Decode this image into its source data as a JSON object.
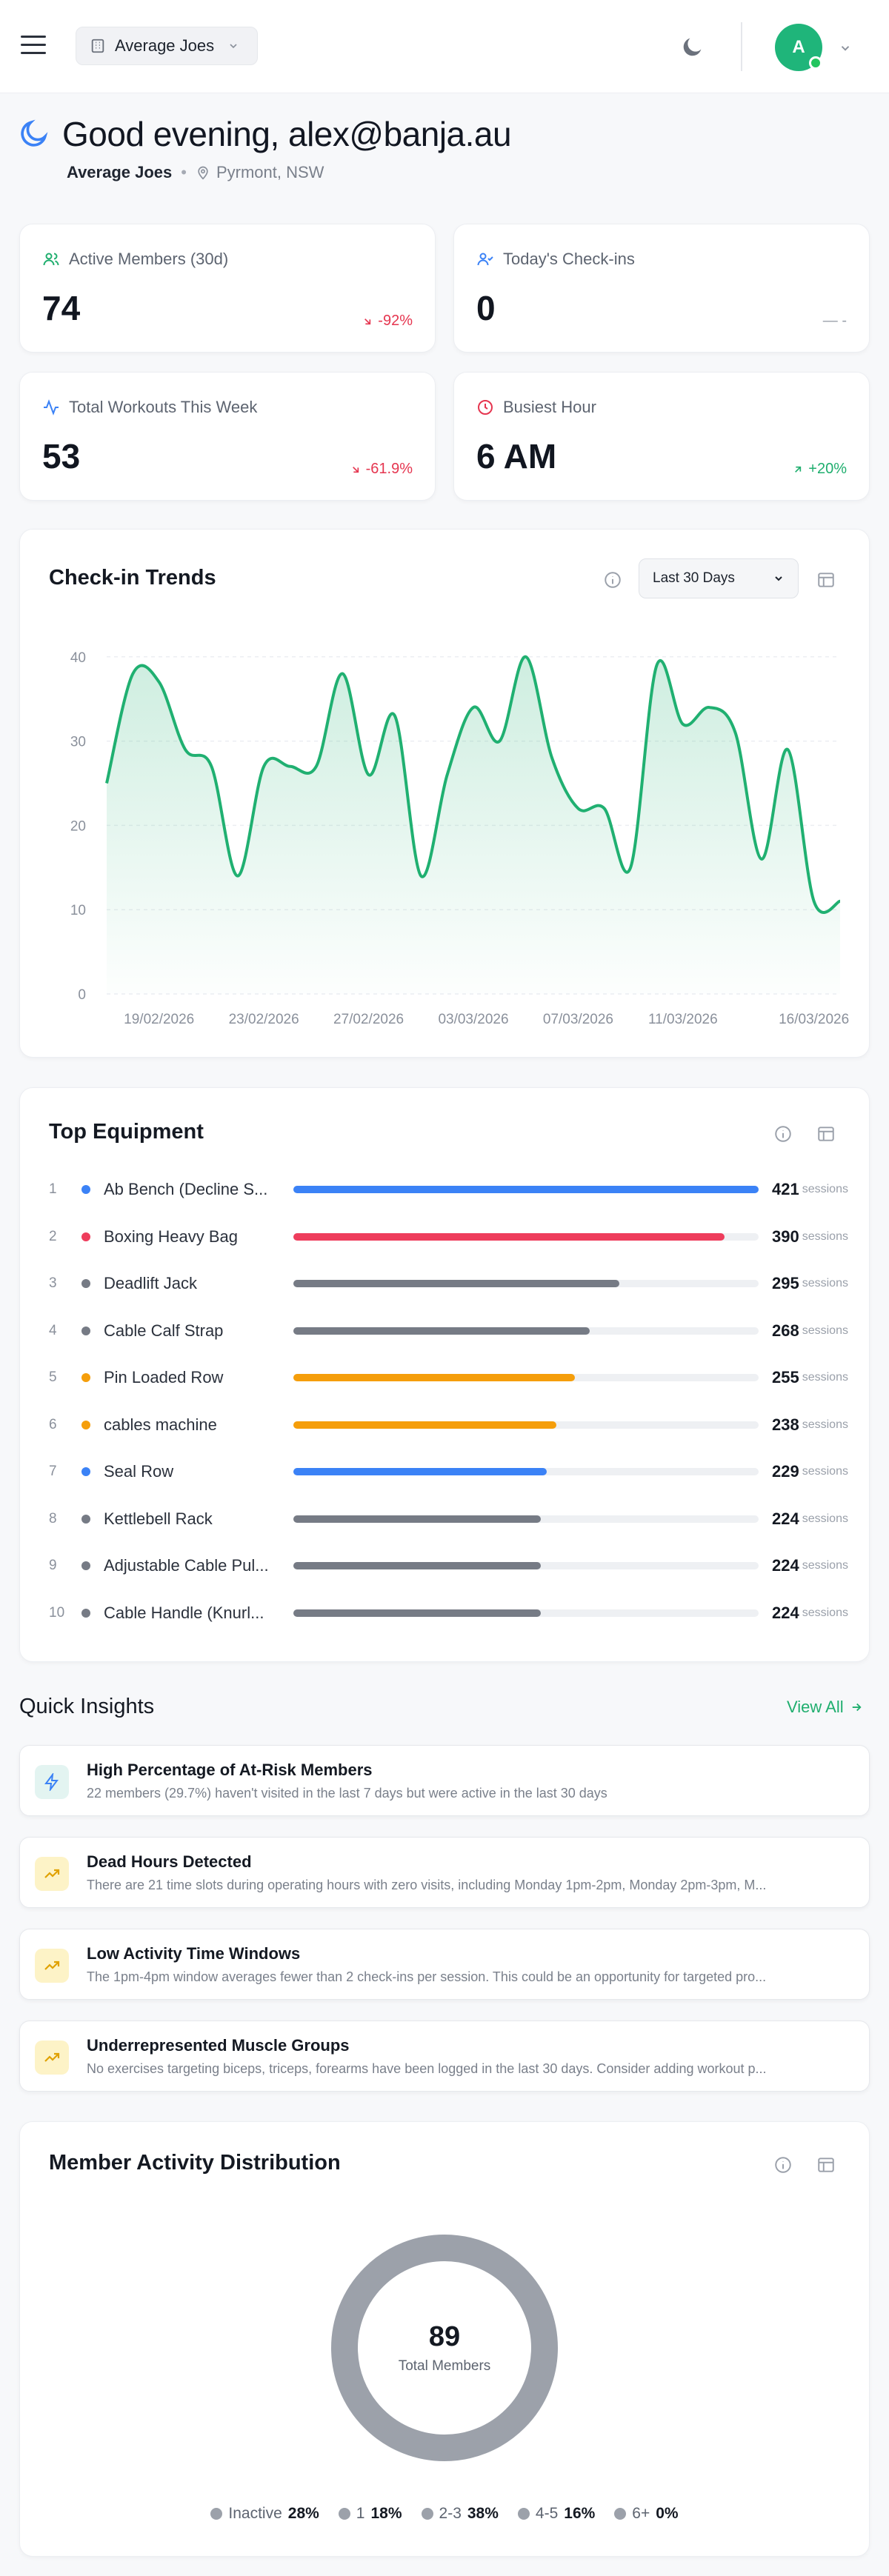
{
  "header": {
    "gym_selector": "Average Joes",
    "avatar_initial": "A"
  },
  "greeting": {
    "title": "Good evening, alex@banja.au",
    "gym_name": "Average Joes",
    "separator": "•",
    "location": "Pyrmont, NSW"
  },
  "stats": [
    {
      "label": "Active Members (30d)",
      "value": "74",
      "change": "-92%",
      "trend": "down",
      "icon": "users-icon",
      "icon_color": "#1fae6e"
    },
    {
      "label": "Today's Check-ins",
      "value": "0",
      "change": "— -",
      "trend": "neutral",
      "icon": "user-check-icon",
      "icon_color": "#3b82f6"
    },
    {
      "label": "Total Workouts This Week",
      "value": "53",
      "change": "-61.9%",
      "trend": "down",
      "icon": "activity-icon",
      "icon_color": "#3b82f6"
    },
    {
      "label": "Busiest Hour",
      "value": "6 AM",
      "change": "+20%",
      "trend": "up",
      "icon": "clock-icon",
      "icon_color": "#e5354f"
    }
  ],
  "checkin_trends": {
    "title": "Check-in Trends",
    "range_label": "Last 30 Days"
  },
  "chart_data": {
    "type": "area",
    "title": "Check-in Trends",
    "x": [
      "17/02/2026",
      "18/02/2026",
      "19/02/2026",
      "20/02/2026",
      "21/02/2026",
      "22/02/2026",
      "23/02/2026",
      "24/02/2026",
      "25/02/2026",
      "26/02/2026",
      "27/02/2026",
      "28/02/2026",
      "01/03/2026",
      "02/03/2026",
      "03/03/2026",
      "04/03/2026",
      "05/03/2026",
      "06/03/2026",
      "07/03/2026",
      "08/03/2026",
      "09/03/2026",
      "10/03/2026",
      "11/03/2026",
      "12/03/2026",
      "13/03/2026",
      "14/03/2026",
      "15/03/2026",
      "16/03/2026",
      "17/03/2026"
    ],
    "values": [
      25,
      38,
      37,
      29,
      27,
      14,
      27,
      27,
      27,
      38,
      26,
      33,
      14,
      26,
      34,
      30,
      40,
      28,
      22,
      22,
      15,
      39,
      32,
      34,
      31,
      16,
      29,
      11,
      11
    ],
    "xtick_labels": [
      "19/02/2026",
      "23/02/2026",
      "27/02/2026",
      "03/03/2026",
      "07/03/2026",
      "11/03/2026",
      "16/03/2026"
    ],
    "yticks": [
      0,
      10,
      20,
      30,
      40
    ],
    "ylim": [
      0,
      42
    ],
    "color": "#20b071",
    "grid": true
  },
  "top_equipment": {
    "title": "Top Equipment",
    "unit": "sessions",
    "max": 421,
    "items": [
      {
        "rank": "1",
        "name": "Ab Bench (Decline S...",
        "count": 421,
        "color": "#3b82f6"
      },
      {
        "rank": "2",
        "name": "Boxing Heavy Bag",
        "count": 390,
        "color": "#ee3d5c"
      },
      {
        "rank": "3",
        "name": "Deadlift Jack",
        "count": 295,
        "color": "#767b85"
      },
      {
        "rank": "4",
        "name": "Cable Calf Strap",
        "count": 268,
        "color": "#767b85"
      },
      {
        "rank": "5",
        "name": "Pin Loaded Row",
        "count": 255,
        "color": "#f59e0b"
      },
      {
        "rank": "6",
        "name": "cables machine",
        "count": 238,
        "color": "#f59e0b"
      },
      {
        "rank": "7",
        "name": "Seal Row",
        "count": 229,
        "color": "#3b82f6"
      },
      {
        "rank": "8",
        "name": "Kettlebell Rack",
        "count": 224,
        "color": "#767b85"
      },
      {
        "rank": "9",
        "name": "Adjustable Cable Pul...",
        "count": 224,
        "color": "#767b85"
      },
      {
        "rank": "10",
        "name": "Cable Handle (Knurl...",
        "count": 224,
        "color": "#767b85"
      }
    ]
  },
  "quick_insights": {
    "title": "Quick Insights",
    "view_all": "View All",
    "items": [
      {
        "title": "High Percentage of At-Risk Members",
        "desc": "22 members (29.7%) haven't visited in the last 7 days but were active in the last 30 days",
        "icon": "zap-icon",
        "bg": "#e3f4f1",
        "fg": "#3b82f6"
      },
      {
        "title": "Dead Hours Detected",
        "desc": "There are 21 time slots during operating hours with zero visits, including Monday 1pm-2pm, Monday 2pm-3pm, M...",
        "icon": "trending-up-icon",
        "bg": "#fdf3c7",
        "fg": "#e0a100"
      },
      {
        "title": "Low Activity Time Windows",
        "desc": "The 1pm-4pm window averages fewer than 2 check-ins per session. This could be an opportunity for targeted pro...",
        "icon": "trending-up-icon",
        "bg": "#fdf3c7",
        "fg": "#e0a100"
      },
      {
        "title": "Underrepresented Muscle Groups",
        "desc": "No exercises targeting biceps, triceps, forearms have been logged in the last 30 days. Consider adding workout p...",
        "icon": "trending-up-icon",
        "bg": "#fdf3c7",
        "fg": "#e0a100"
      }
    ]
  },
  "distribution": {
    "title": "Member Activity Distribution",
    "total": "89",
    "total_label": "Total Members",
    "ring_color": "#9ca1aa",
    "legend": [
      {
        "name": "Inactive",
        "value": "28%"
      },
      {
        "name": "1",
        "value": "18%"
      },
      {
        "name": "2-3",
        "value": "38%"
      },
      {
        "name": "4-5",
        "value": "16%"
      },
      {
        "name": "6+",
        "value": "0%"
      }
    ],
    "legend_color": "#9ca1aa"
  }
}
